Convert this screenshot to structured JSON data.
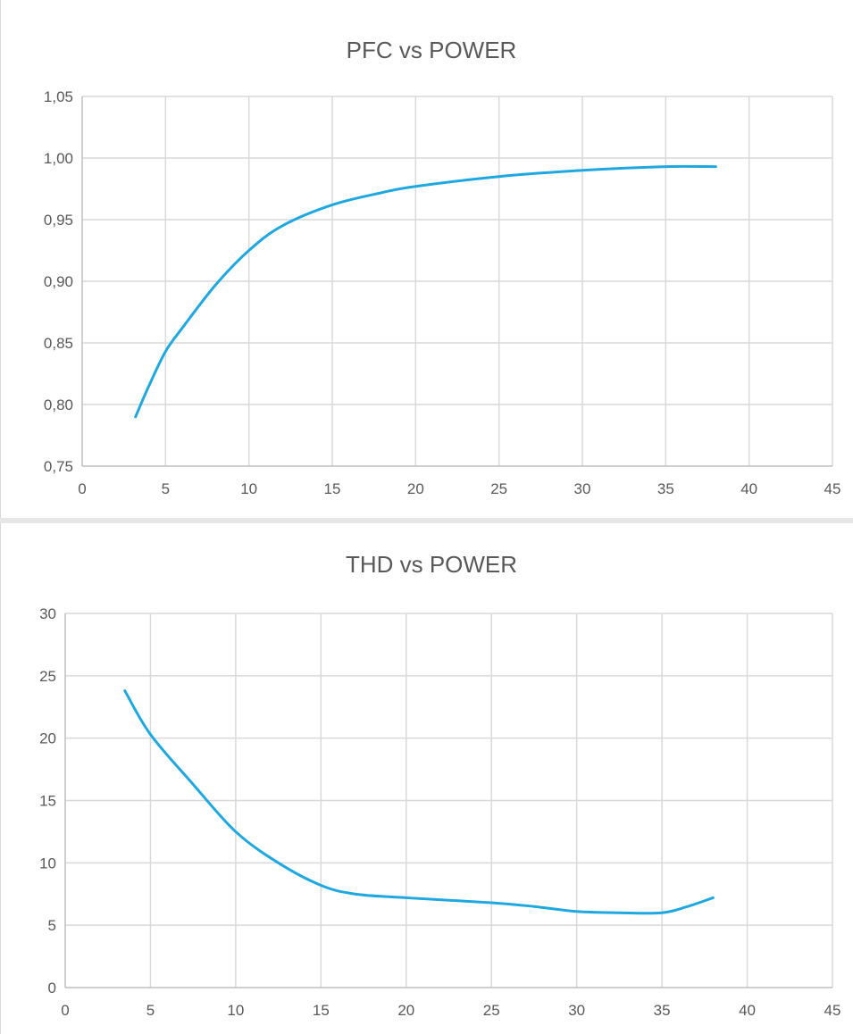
{
  "chart_data": [
    {
      "type": "line",
      "title": "PFC vs POWER",
      "xlabel": "",
      "ylabel": "",
      "xlim": [
        0,
        45
      ],
      "ylim": [
        0.75,
        1.05
      ],
      "x_ticks": [
        "0",
        "5",
        "10",
        "15",
        "20",
        "25",
        "30",
        "35",
        "40",
        "45"
      ],
      "y_ticks": [
        "0,75",
        "0,80",
        "0,85",
        "0,90",
        "0,95",
        "1,00",
        "1,05"
      ],
      "grid": true,
      "legend": "none",
      "color": "#1fa8e0",
      "series": [
        {
          "x": [
            3.2,
            4,
            5,
            6,
            8,
            10,
            12,
            15,
            18,
            20,
            25,
            30,
            35,
            38
          ],
          "values": [
            0.79,
            0.815,
            0.843,
            0.862,
            0.897,
            0.925,
            0.945,
            0.962,
            0.972,
            0.977,
            0.985,
            0.99,
            0.993,
            0.993
          ]
        }
      ]
    },
    {
      "type": "line",
      "title": "THD vs POWER",
      "xlabel": "",
      "ylabel": "",
      "xlim": [
        0,
        45
      ],
      "ylim": [
        0,
        30
      ],
      "x_ticks": [
        "0",
        "5",
        "10",
        "15",
        "20",
        "25",
        "30",
        "35",
        "40",
        "45"
      ],
      "y_ticks": [
        "0",
        "5",
        "10",
        "15",
        "20",
        "25",
        "30"
      ],
      "grid": true,
      "legend": "none",
      "color": "#1fa8e0",
      "series": [
        {
          "x": [
            3.5,
            5,
            7.5,
            10,
            12.5,
            15,
            17,
            20,
            25,
            27.5,
            30,
            32.5,
            35,
            36.5,
            38
          ],
          "values": [
            23.8,
            20.3,
            16.3,
            12.5,
            10,
            8.2,
            7.5,
            7.2,
            6.8,
            6.5,
            6.1,
            6,
            6,
            6.5,
            7.2
          ]
        }
      ]
    }
  ]
}
